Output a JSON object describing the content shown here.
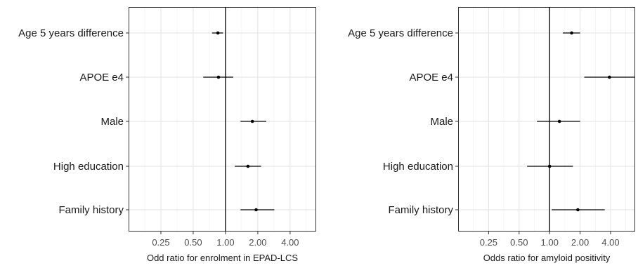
{
  "chart_data": [
    {
      "type": "forest",
      "xlabel": "Odd ratio for enrolment in EPAD-LCS",
      "x_scale": "log2",
      "xlim": [
        0.125,
        7.0
      ],
      "xticks": [
        0.25,
        0.5,
        1.0,
        2.0,
        4.0
      ],
      "xtick_labels": [
        "0.25",
        "0.50",
        "1.00",
        "2.00",
        "4.00"
      ],
      "reference_line": 1.0,
      "categories": [
        "Age 5 years difference",
        "APOE e4",
        "Male",
        "High education",
        "Family history"
      ],
      "estimates": [
        {
          "estimate": 0.85,
          "lower": 0.75,
          "upper": 0.95
        },
        {
          "estimate": 0.86,
          "lower": 0.62,
          "upper": 1.18
        },
        {
          "estimate": 1.78,
          "lower": 1.38,
          "upper": 2.4
        },
        {
          "estimate": 1.62,
          "lower": 1.22,
          "upper": 2.15
        },
        {
          "estimate": 1.93,
          "lower": 1.38,
          "upper": 2.85
        }
      ],
      "grid": true,
      "legend": "none"
    },
    {
      "type": "forest",
      "xlabel": "Odds ratio for amyloid positivity",
      "x_scale": "log2",
      "xlim": [
        0.125,
        7.0
      ],
      "xticks": [
        0.25,
        0.5,
        1.0,
        2.0,
        4.0
      ],
      "xtick_labels": [
        "0.25",
        "0.50",
        "1.00",
        "2.00",
        "4.00"
      ],
      "reference_line": 1.0,
      "categories": [
        "Age 5 years difference",
        "APOE e4",
        "Male",
        "High education",
        "Family history"
      ],
      "estimates": [
        {
          "estimate": 1.65,
          "lower": 1.35,
          "upper": 2.0
        },
        {
          "estimate": 3.9,
          "lower": 2.2,
          "upper": 6.9
        },
        {
          "estimate": 1.25,
          "lower": 0.75,
          "upper": 2.0
        },
        {
          "estimate": 1.0,
          "lower": 0.6,
          "upper": 1.7
        },
        {
          "estimate": 1.9,
          "lower": 1.05,
          "upper": 3.5
        }
      ],
      "grid": true,
      "legend": "none"
    }
  ]
}
